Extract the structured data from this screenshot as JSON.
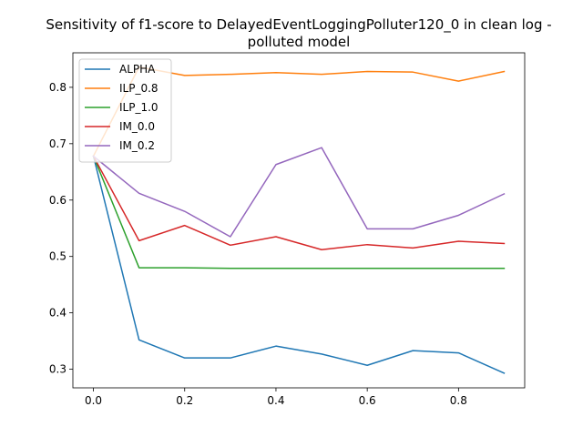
{
  "chart_data": {
    "type": "line",
    "title_lines": [
      "Sensitivity of f1-score to DelayedEventLoggingPolluter120_0 in clean log -",
      "polluted model"
    ],
    "xlabel": "",
    "ylabel": "",
    "xlim": [
      -0.045,
      0.945
    ],
    "ylim": [
      0.267,
      0.8612
    ],
    "xticks": [
      0.0,
      0.2,
      0.4,
      0.6,
      0.8
    ],
    "xtick_labels": [
      "0.0",
      "0.2",
      "0.4",
      "0.6",
      "0.8"
    ],
    "yticks": [
      0.3,
      0.4,
      0.5,
      0.6,
      0.7,
      0.8
    ],
    "ytick_labels": [
      "0.3",
      "0.4",
      "0.5",
      "0.6",
      "0.7",
      "0.8"
    ],
    "grid": false,
    "legend_position": "top-left",
    "x": [
      0.0,
      0.1,
      0.2,
      0.3,
      0.4,
      0.5,
      0.6,
      0.7,
      0.8,
      0.9
    ],
    "series": [
      {
        "name": "ALPHA",
        "color": "#1f77b4",
        "values": [
          0.678,
          0.352,
          0.32,
          0.32,
          0.341,
          0.327,
          0.307,
          0.333,
          0.329,
          0.293
        ]
      },
      {
        "name": "ILP_0.8",
        "color": "#ff7f0e",
        "values": [
          0.678,
          0.836,
          0.821,
          0.823,
          0.826,
          0.823,
          0.828,
          0.827,
          0.811,
          0.828
        ]
      },
      {
        "name": "ILP_1.0",
        "color": "#2ca02c",
        "values": [
          0.678,
          0.48,
          0.48,
          0.479,
          0.479,
          0.479,
          0.479,
          0.479,
          0.479,
          0.479
        ]
      },
      {
        "name": "IM_0.0",
        "color": "#d62728",
        "values": [
          0.678,
          0.528,
          0.555,
          0.52,
          0.535,
          0.512,
          0.521,
          0.515,
          0.527,
          0.523
        ]
      },
      {
        "name": "IM_0.2",
        "color": "#9467bd",
        "values": [
          0.678,
          0.612,
          0.58,
          0.535,
          0.663,
          0.693,
          0.549,
          0.549,
          0.573,
          0.611
        ]
      }
    ]
  }
}
